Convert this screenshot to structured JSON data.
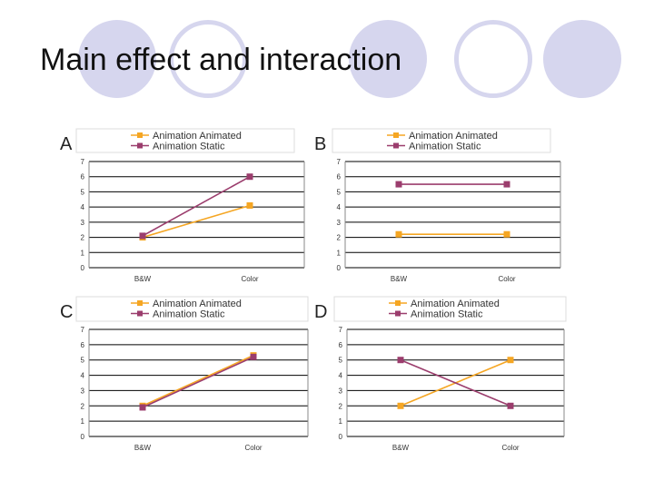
{
  "slide": {
    "title": "Main effect and interaction"
  },
  "colors": {
    "animated": "#f5a623",
    "static": "#9b3d6d",
    "grid": "#000000",
    "decor": "#d6d6ee"
  },
  "chart_data": [
    {
      "panel_label": "A",
      "type": "line",
      "categories": [
        "B&W",
        "Color"
      ],
      "ylim": [
        0,
        7
      ],
      "yticks": [
        0,
        1,
        2,
        3,
        4,
        5,
        6,
        7
      ],
      "series": [
        {
          "name": "Animation Animated",
          "values": [
            2,
            4.1
          ]
        },
        {
          "name": "Animation Static",
          "values": [
            2.1,
            6
          ]
        }
      ]
    },
    {
      "panel_label": "B",
      "type": "line",
      "categories": [
        "B&W",
        "Color"
      ],
      "ylim": [
        0,
        7
      ],
      "yticks": [
        0,
        1,
        2,
        3,
        4,
        5,
        6,
        7
      ],
      "series": [
        {
          "name": "Animation Animated",
          "values": [
            2.2,
            2.2
          ]
        },
        {
          "name": "Animation Static",
          "values": [
            5.5,
            5.5
          ]
        }
      ]
    },
    {
      "panel_label": "C",
      "type": "line",
      "categories": [
        "B&W",
        "Color"
      ],
      "ylim": [
        0,
        7
      ],
      "yticks": [
        0,
        1,
        2,
        3,
        4,
        5,
        6,
        7
      ],
      "series": [
        {
          "name": "Animation Animated",
          "values": [
            2,
            5.3
          ]
        },
        {
          "name": "Animation Static",
          "values": [
            1.9,
            5.2
          ]
        }
      ]
    },
    {
      "panel_label": "D",
      "type": "line",
      "categories": [
        "B&W",
        "Color"
      ],
      "ylim": [
        0,
        7
      ],
      "yticks": [
        0,
        1,
        2,
        3,
        4,
        5,
        6,
        7
      ],
      "series": [
        {
          "name": "Animation Animated",
          "values": [
            2,
            5
          ]
        },
        {
          "name": "Animation Static",
          "values": [
            5,
            2
          ]
        }
      ]
    }
  ]
}
